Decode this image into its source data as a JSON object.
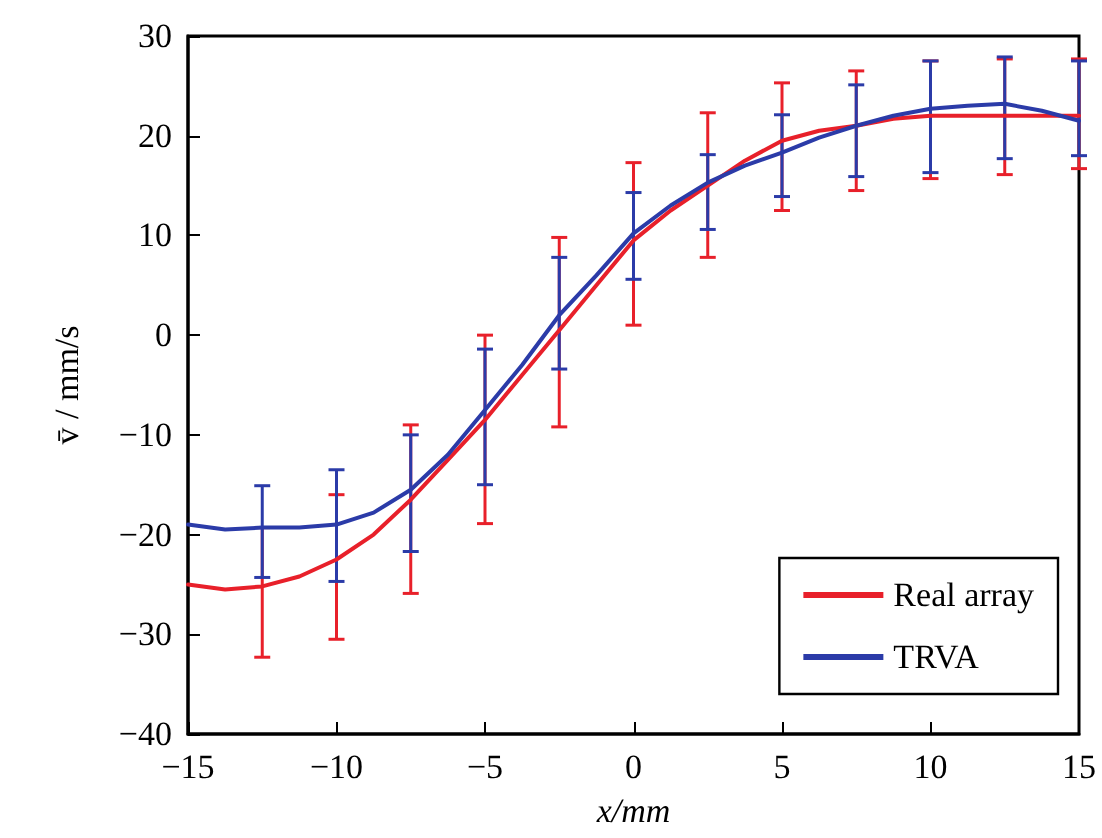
{
  "chart_data": {
    "type": "line",
    "xlabel": "x/mm",
    "ylabel": "v̄ / mm/s",
    "x": [
      -15,
      -13.75,
      -12.5,
      -11.25,
      -10,
      -8.75,
      -7.5,
      -6.25,
      -5,
      -3.75,
      -2.5,
      -1.25,
      0,
      1.25,
      2.5,
      3.75,
      5,
      6.25,
      7.5,
      8.75,
      10,
      11.25,
      12.5,
      13.75,
      15
    ],
    "series": [
      {
        "name": "Real array",
        "color": "#e8202a",
        "values": [
          -25,
          -25.5,
          -25.2,
          -24.2,
          -22.5,
          -20,
          -16.5,
          -12.5,
          -8.5,
          -4,
          0.5,
          5,
          9.5,
          12.5,
          15,
          17.5,
          19.5,
          20.5,
          21,
          21.7,
          22,
          22,
          22,
          22,
          22
        ],
        "errors": [
          null,
          null,
          [
            -32.3,
            -19.3
          ],
          null,
          [
            -30.5,
            -16
          ],
          null,
          [
            -25.9,
            -9
          ],
          null,
          [
            -18.9,
            0
          ],
          null,
          [
            -9.2,
            9.8
          ],
          null,
          [
            1,
            17.3
          ],
          null,
          [
            7.8,
            22.3
          ],
          null,
          [
            12.5,
            25.3
          ],
          null,
          [
            14.5,
            26.5
          ],
          null,
          [
            15.7,
            27.5
          ],
          null,
          [
            16.1,
            27.7
          ],
          null,
          [
            16.7,
            27.7
          ]
        ]
      },
      {
        "name": "TRVA",
        "color": "#2b3ba8",
        "values": [
          -19,
          -19.5,
          -19.3,
          -19.3,
          -19,
          -17.8,
          -15.5,
          -12,
          -7.5,
          -3,
          2,
          6,
          10.2,
          13,
          15.3,
          17,
          18.3,
          19.8,
          21,
          22,
          22.7,
          23,
          23.2,
          22.5,
          21.5
        ],
        "errors": [
          null,
          null,
          [
            -24.3,
            -15.1
          ],
          null,
          [
            -24.7,
            -13.5
          ],
          null,
          [
            -21.7,
            -10
          ],
          null,
          [
            -15,
            -1.4
          ],
          null,
          [
            -3.4,
            7.8
          ],
          null,
          [
            5.6,
            14.3
          ],
          null,
          [
            10.6,
            18.1
          ],
          null,
          [
            13.9,
            22.1
          ],
          null,
          [
            15.9,
            25.1
          ],
          null,
          [
            16.3,
            27.5
          ],
          null,
          [
            17.7,
            27.9
          ],
          null,
          [
            18,
            27.5
          ]
        ]
      }
    ],
    "xlim": [
      -15,
      15
    ],
    "xticks": [
      -15,
      -10,
      -5,
      0,
      5,
      10,
      15
    ],
    "ylim": [
      -40,
      30
    ],
    "yticks": [
      -40,
      -30,
      -20,
      -10,
      0,
      10,
      20,
      30
    ],
    "legend": "bottom right",
    "marker": "none",
    "line_style": "solid"
  }
}
